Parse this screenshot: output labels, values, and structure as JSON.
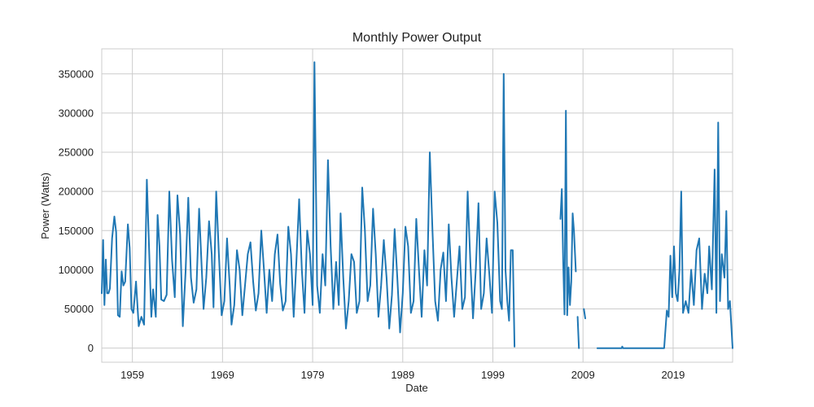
{
  "chart_data": {
    "type": "line",
    "title": "Monthly Power Output",
    "xlabel": "Date",
    "ylabel": "Power (Watts)",
    "xlim": [
      1955.6,
      2025.6
    ],
    "ylim": [
      -18000,
      382000
    ],
    "x_ticks": [
      1959,
      1969,
      1979,
      1989,
      1999,
      2009,
      2019
    ],
    "y_ticks": [
      0,
      50000,
      100000,
      150000,
      200000,
      250000,
      300000,
      350000
    ],
    "grid": true,
    "legend": "none",
    "colors": {
      "line": "#1f77b4",
      "grid": "#cccccc",
      "background": "#ffffff"
    },
    "series": [
      {
        "segments": [
          [
            [
              1955.6,
              70000
            ],
            [
              1955.75,
              138000
            ],
            [
              1955.9,
              55000
            ],
            [
              1956.05,
              113000
            ],
            [
              1956.2,
              70000
            ],
            [
              1956.35,
              70000
            ],
            [
              1956.5,
              76000
            ],
            [
              1956.75,
              140000
            ],
            [
              1957.0,
              168000
            ],
            [
              1957.2,
              148000
            ],
            [
              1957.4,
              42000
            ],
            [
              1957.6,
              40000
            ],
            [
              1957.8,
              98000
            ],
            [
              1958.0,
              80000
            ],
            [
              1958.2,
              85000
            ],
            [
              1958.5,
              158000
            ],
            [
              1958.7,
              128000
            ],
            [
              1958.9,
              50000
            ],
            [
              1959.1,
              45000
            ],
            [
              1959.4,
              85000
            ],
            [
              1959.7,
              28000
            ],
            [
              1960.0,
              40000
            ],
            [
              1960.3,
              30000
            ],
            [
              1960.6,
              215000
            ],
            [
              1960.9,
              110000
            ],
            [
              1961.1,
              40000
            ],
            [
              1961.3,
              75000
            ],
            [
              1961.6,
              40000
            ],
            [
              1961.8,
              170000
            ],
            [
              1962.0,
              130000
            ],
            [
              1962.2,
              62000
            ],
            [
              1962.5,
              60000
            ],
            [
              1962.8,
              68000
            ],
            [
              1963.1,
              200000
            ],
            [
              1963.4,
              112000
            ],
            [
              1963.7,
              65000
            ],
            [
              1964.0,
              195000
            ],
            [
              1964.3,
              145000
            ],
            [
              1964.6,
              28000
            ],
            [
              1964.9,
              98000
            ],
            [
              1965.2,
              192000
            ],
            [
              1965.5,
              90000
            ],
            [
              1965.8,
              58000
            ],
            [
              1966.1,
              75000
            ],
            [
              1966.4,
              178000
            ],
            [
              1966.7,
              100000
            ],
            [
              1966.9,
              50000
            ],
            [
              1967.2,
              90000
            ],
            [
              1967.5,
              162000
            ],
            [
              1967.8,
              120000
            ],
            [
              1968.0,
              52000
            ],
            [
              1968.3,
              200000
            ],
            [
              1968.6,
              120000
            ],
            [
              1968.9,
              42000
            ],
            [
              1969.2,
              60000
            ],
            [
              1969.5,
              140000
            ],
            [
              1969.8,
              80000
            ],
            [
              1970.0,
              30000
            ],
            [
              1970.3,
              55000
            ],
            [
              1970.6,
              125000
            ],
            [
              1970.9,
              100000
            ],
            [
              1971.2,
              42000
            ],
            [
              1971.5,
              80000
            ],
            [
              1971.8,
              120000
            ],
            [
              1972.1,
              135000
            ],
            [
              1972.4,
              85000
            ],
            [
              1972.7,
              48000
            ],
            [
              1973.0,
              70000
            ],
            [
              1973.3,
              150000
            ],
            [
              1973.6,
              100000
            ],
            [
              1973.9,
              45000
            ],
            [
              1974.2,
              100000
            ],
            [
              1974.5,
              60000
            ],
            [
              1974.8,
              120000
            ],
            [
              1975.1,
              145000
            ],
            [
              1975.4,
              82000
            ],
            [
              1975.7,
              48000
            ],
            [
              1976.0,
              60000
            ],
            [
              1976.3,
              155000
            ],
            [
              1976.6,
              120000
            ],
            [
              1976.9,
              40000
            ],
            [
              1977.2,
              110000
            ],
            [
              1977.5,
              190000
            ],
            [
              1977.8,
              100000
            ],
            [
              1978.1,
              45000
            ],
            [
              1978.4,
              150000
            ],
            [
              1978.7,
              120000
            ],
            [
              1979.0,
              55000
            ],
            [
              1979.2,
              365000
            ],
            [
              1979.5,
              80000
            ],
            [
              1979.8,
              45000
            ],
            [
              1980.1,
              120000
            ],
            [
              1980.4,
              80000
            ],
            [
              1980.7,
              240000
            ],
            [
              1981.0,
              130000
            ],
            [
              1981.3,
              50000
            ],
            [
              1981.6,
              110000
            ],
            [
              1981.9,
              55000
            ],
            [
              1982.1,
              172000
            ],
            [
              1982.4,
              90000
            ],
            [
              1982.7,
              25000
            ],
            [
              1983.0,
              60000
            ],
            [
              1983.3,
              120000
            ],
            [
              1983.6,
              110000
            ],
            [
              1983.9,
              45000
            ],
            [
              1984.2,
              60000
            ],
            [
              1984.5,
              205000
            ],
            [
              1984.8,
              150000
            ],
            [
              1985.1,
              60000
            ],
            [
              1985.4,
              80000
            ],
            [
              1985.7,
              178000
            ],
            [
              1986.0,
              120000
            ],
            [
              1986.3,
              40000
            ],
            [
              1986.6,
              80000
            ],
            [
              1986.9,
              138000
            ],
            [
              1987.2,
              90000
            ],
            [
              1987.5,
              25000
            ],
            [
              1987.8,
              68000
            ],
            [
              1988.1,
              152000
            ],
            [
              1988.4,
              90000
            ],
            [
              1988.7,
              20000
            ],
            [
              1989.0,
              70000
            ],
            [
              1989.3,
              155000
            ],
            [
              1989.6,
              130000
            ],
            [
              1989.9,
              45000
            ],
            [
              1990.2,
              60000
            ],
            [
              1990.5,
              165000
            ],
            [
              1990.8,
              100000
            ],
            [
              1991.1,
              40000
            ],
            [
              1991.4,
              125000
            ],
            [
              1991.7,
              80000
            ],
            [
              1992.0,
              250000
            ],
            [
              1992.3,
              150000
            ],
            [
              1992.6,
              60000
            ],
            [
              1992.9,
              35000
            ],
            [
              1993.2,
              100000
            ],
            [
              1993.5,
              122000
            ],
            [
              1993.8,
              60000
            ],
            [
              1994.1,
              158000
            ],
            [
              1994.4,
              90000
            ],
            [
              1994.7,
              40000
            ],
            [
              1995.0,
              85000
            ],
            [
              1995.3,
              130000
            ],
            [
              1995.6,
              50000
            ],
            [
              1995.9,
              65000
            ],
            [
              1996.2,
              200000
            ],
            [
              1996.5,
              110000
            ],
            [
              1996.8,
              38000
            ],
            [
              1997.1,
              100000
            ],
            [
              1997.4,
              185000
            ],
            [
              1997.7,
              50000
            ],
            [
              1998.0,
              70000
            ],
            [
              1998.3,
              140000
            ],
            [
              1998.6,
              95000
            ],
            [
              1998.9,
              45000
            ],
            [
              1999.2,
              200000
            ],
            [
              1999.5,
              160000
            ],
            [
              1999.8,
              60000
            ],
            [
              2000.0,
              50000
            ],
            [
              2000.2,
              350000
            ],
            [
              2000.4,
              100000
            ],
            [
              2000.6,
              60000
            ],
            [
              2000.8,
              35000
            ],
            [
              2001.0,
              125000
            ],
            [
              2001.2,
              125000
            ],
            [
              2001.4,
              2000
            ]
          ],
          [
            [
              2006.5,
              165000
            ],
            [
              2006.65,
              203000
            ],
            [
              2006.8,
              110000
            ],
            [
              2006.95,
              43000
            ],
            [
              2007.1,
              303000
            ],
            [
              2007.25,
              42000
            ],
            [
              2007.4,
              103000
            ],
            [
              2007.55,
              55000
            ],
            [
              2007.7,
              85000
            ],
            [
              2007.85,
              172000
            ],
            [
              2008.0,
              150000
            ],
            [
              2008.2,
              98000
            ]
          ],
          [
            [
              2008.4,
              40000
            ],
            [
              2008.55,
              0
            ]
          ],
          [
            [
              2009.1,
              50000
            ],
            [
              2009.25,
              38000
            ]
          ],
          [
            [
              2010.6,
              0
            ],
            [
              2013.3,
              0
            ],
            [
              2013.35,
              2000
            ],
            [
              2013.45,
              0
            ],
            [
              2018.0,
              0
            ],
            [
              2018.3,
              48000
            ],
            [
              2018.5,
              40000
            ],
            [
              2018.7,
              118000
            ],
            [
              2018.9,
              65000
            ],
            [
              2019.1,
              130000
            ],
            [
              2019.3,
              70000
            ],
            [
              2019.5,
              60000
            ],
            [
              2019.7,
              100000
            ],
            [
              2019.9,
              200000
            ],
            [
              2020.1,
              45000
            ],
            [
              2020.4,
              60000
            ],
            [
              2020.7,
              45000
            ],
            [
              2021.0,
              100000
            ],
            [
              2021.3,
              55000
            ],
            [
              2021.6,
              125000
            ],
            [
              2021.9,
              140000
            ],
            [
              2022.2,
              50000
            ],
            [
              2022.5,
              95000
            ],
            [
              2022.8,
              70000
            ],
            [
              2023.0,
              130000
            ],
            [
              2023.3,
              75000
            ],
            [
              2023.6,
              228000
            ],
            [
              2023.8,
              45000
            ],
            [
              2024.0,
              288000
            ],
            [
              2024.2,
              60000
            ],
            [
              2024.4,
              120000
            ],
            [
              2024.7,
              90000
            ],
            [
              2024.9,
              175000
            ],
            [
              2025.1,
              50000
            ],
            [
              2025.3,
              60000
            ],
            [
              2025.6,
              0
            ]
          ]
        ]
      }
    ]
  }
}
